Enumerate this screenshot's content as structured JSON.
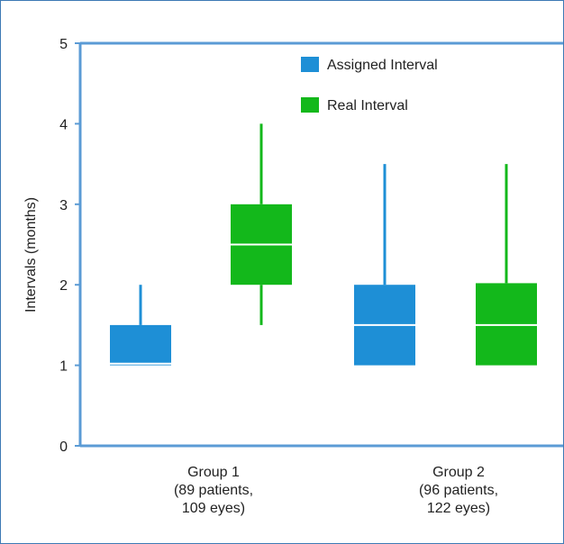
{
  "chart_data": {
    "type": "boxplot",
    "title": "",
    "ylabel": "Intervals (months)",
    "ylim": [
      0,
      5
    ],
    "yticks": [
      "0",
      "1",
      "2",
      "3",
      "4",
      "5"
    ],
    "groups": [
      {
        "label_lines": [
          "Group 1",
          "(89 patients,",
          "109 eyes)"
        ]
      },
      {
        "label_lines": [
          "Group 2",
          "(96 patients,",
          "122 eyes)"
        ]
      }
    ],
    "series": [
      {
        "name": "Assigned Interval",
        "color": "#1e8fd6",
        "boxes": [
          {
            "min": 1.0,
            "q1": 1.0,
            "median": 1.02,
            "q3": 1.5,
            "max": 2.0
          },
          {
            "min": 1.0,
            "q1": 1.0,
            "median": 1.5,
            "q3": 2.0,
            "max": 3.5
          }
        ]
      },
      {
        "name": "Real Interval",
        "color": "#13b81b",
        "boxes": [
          {
            "min": 1.5,
            "q1": 2.0,
            "median": 2.5,
            "q3": 3.0,
            "max": 4.0
          },
          {
            "min": 1.0,
            "q1": 1.0,
            "median": 1.5,
            "q3": 2.02,
            "max": 3.5
          }
        ]
      }
    ],
    "legend_position": "top-right",
    "grid": false
  },
  "colors": {
    "axis": "#5b9bd5",
    "median": "#ffffff"
  }
}
